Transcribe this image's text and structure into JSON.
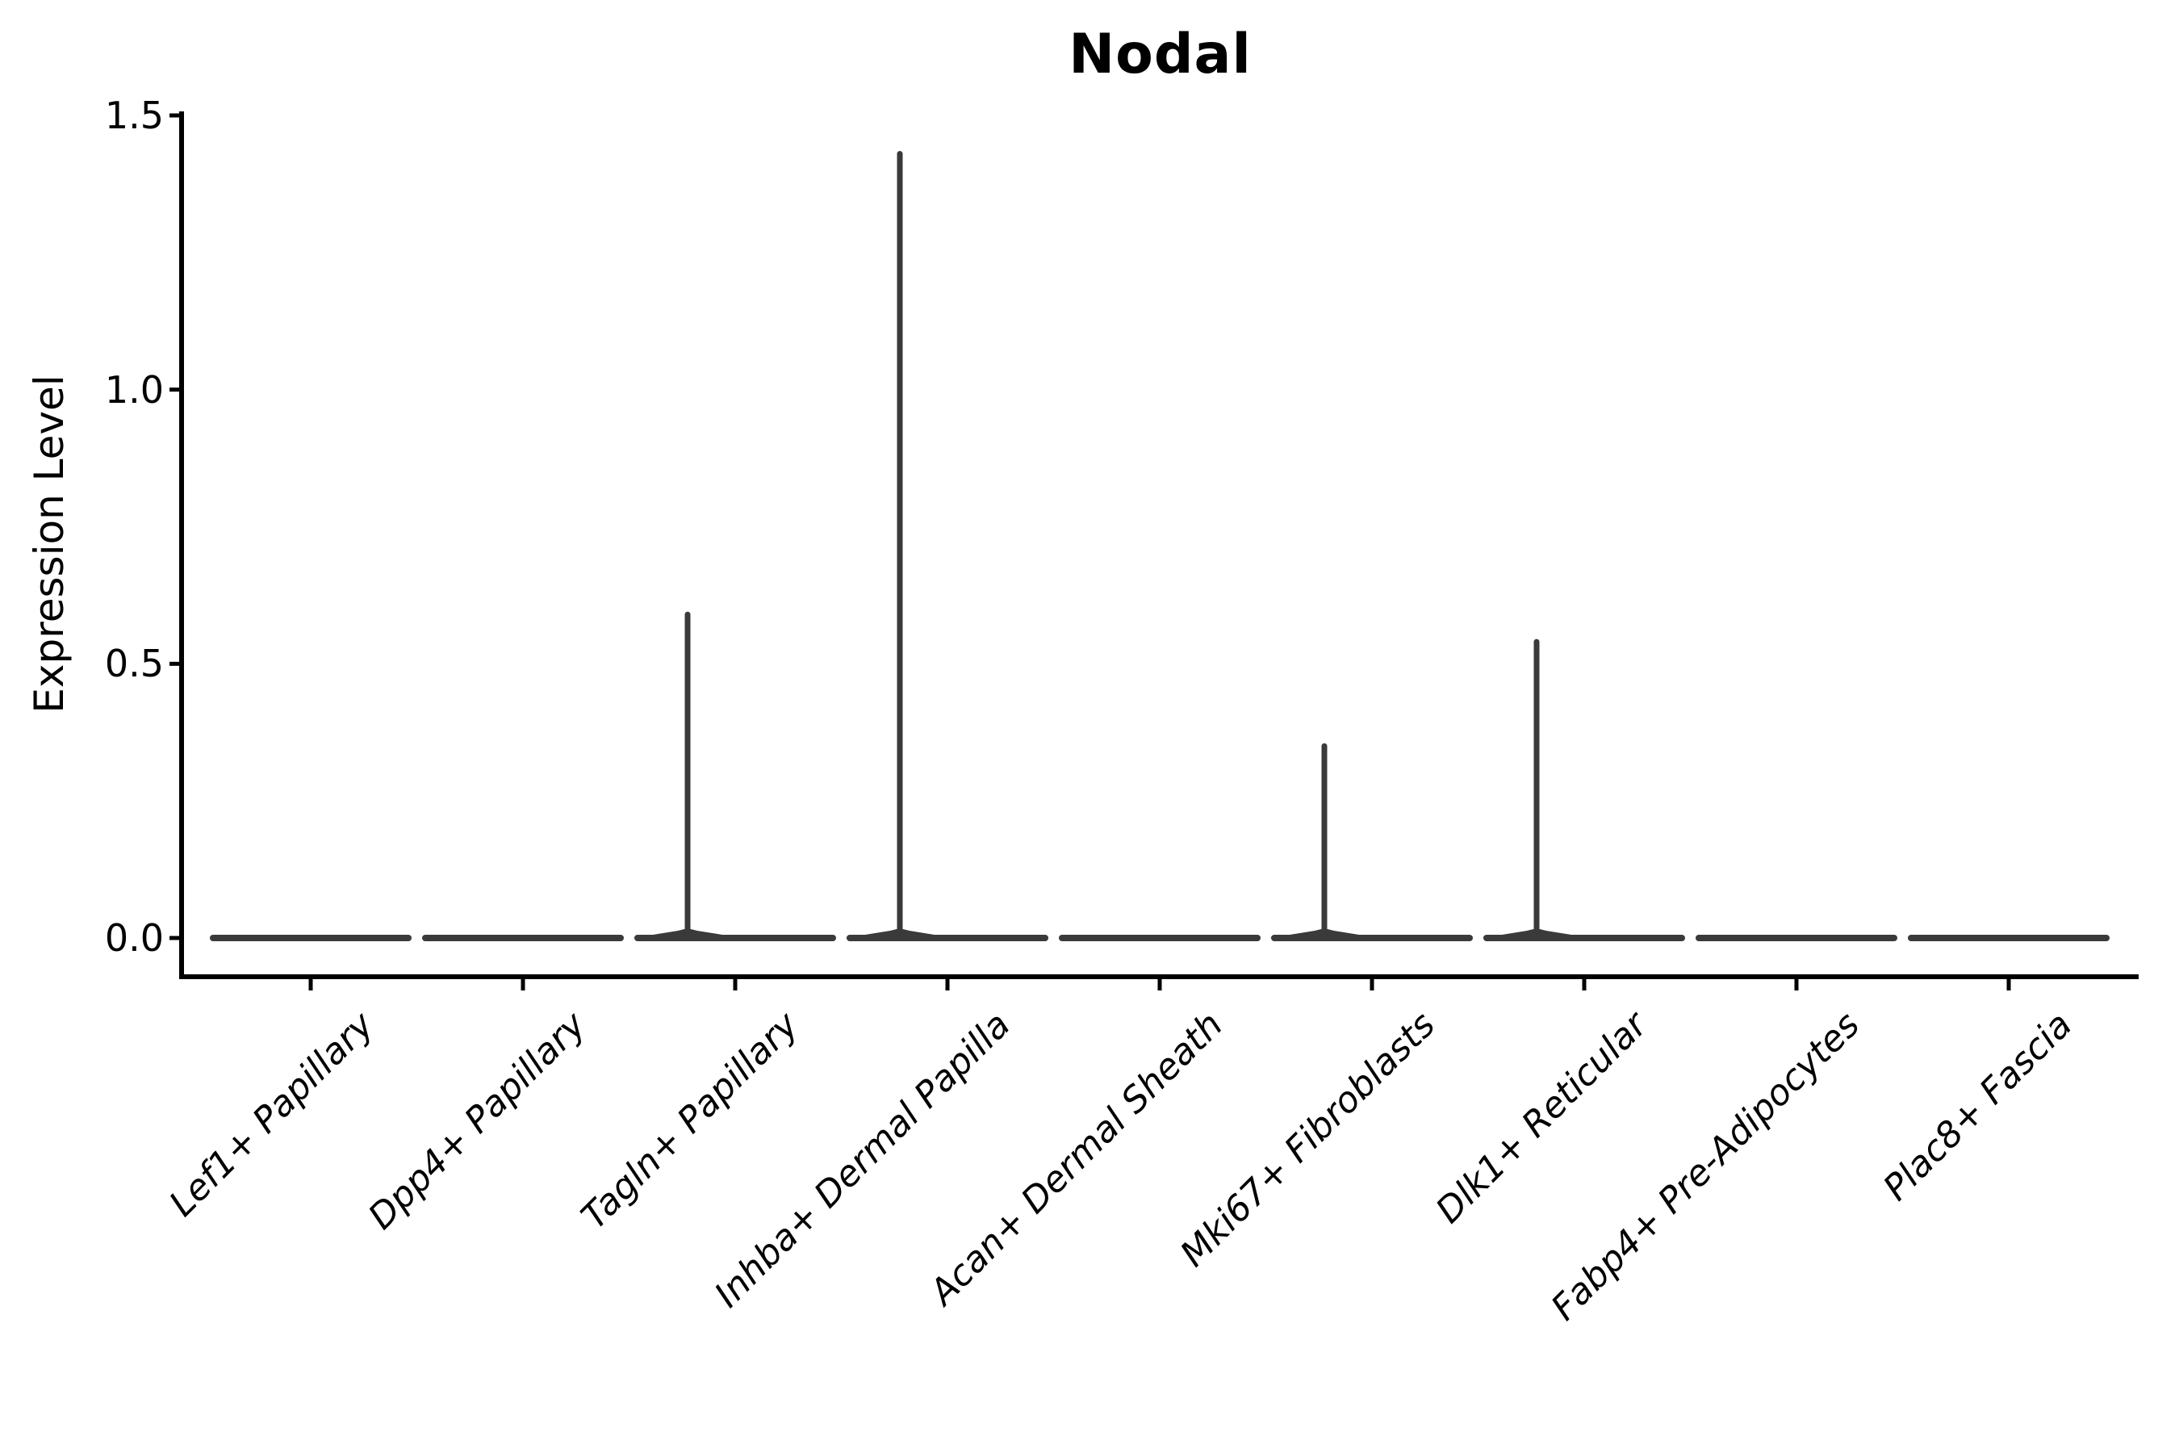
{
  "title": "Nodal",
  "ylabel": "Expression Level",
  "colors": {
    "background": "#ffffff",
    "axis": "#000000",
    "text": "#000000",
    "violin_stroke": "#3a3a3a"
  },
  "chart_data": {
    "type": "violin",
    "title": "Nodal",
    "xlabel": "",
    "ylabel": "Expression Level",
    "ylim": [
      0,
      1.5
    ],
    "grid": false,
    "legend_position": "none",
    "ytick_labels": [
      "0.0",
      "0.5",
      "1.0",
      "1.5"
    ],
    "ytick_values": [
      0.0,
      0.5,
      1.0,
      1.5
    ],
    "categories": [
      "Lef1+ Papillary",
      "Dpp4+ Papillary",
      "Tagln+ Papillary",
      "Inhba+ Dermal Papilla",
      "Acan+ Dermal Sheath",
      "Mki67+ Fibroblasts",
      "Dlk1+ Reticular",
      "Fabp4+ Pre-Adipocytes",
      "Plac8+ Fascia"
    ],
    "violins": [
      {
        "category": "Lef1+ Papillary",
        "bulk_value": 0.0,
        "max_expression": 0.0
      },
      {
        "category": "Dpp4+ Papillary",
        "bulk_value": 0.0,
        "max_expression": 0.0
      },
      {
        "category": "Tagln+ Papillary",
        "bulk_value": 0.0,
        "max_expression": 0.59
      },
      {
        "category": "Inhba+ Dermal Papilla",
        "bulk_value": 0.0,
        "max_expression": 1.43
      },
      {
        "category": "Acan+ Dermal Sheath",
        "bulk_value": 0.0,
        "max_expression": 0.0
      },
      {
        "category": "Mki67+ Fibroblasts",
        "bulk_value": 0.0,
        "max_expression": 0.35
      },
      {
        "category": "Dlk1+ Reticular",
        "bulk_value": 0.0,
        "max_expression": 0.54
      },
      {
        "category": "Fabp4+ Pre-Adipocytes",
        "bulk_value": 0.0,
        "max_expression": 0.0
      },
      {
        "category": "Plac8+ Fascia",
        "bulk_value": 0.0,
        "max_expression": 0.0
      }
    ],
    "description": "Violin plot of Nodal expression; density is concentrated at 0 for all cell types, with thin spikes of rare expressing cells in Tagln+ Papillary, Inhba+ Dermal Papilla, Mki67+ Fibroblasts and Dlk1+ Reticular."
  }
}
